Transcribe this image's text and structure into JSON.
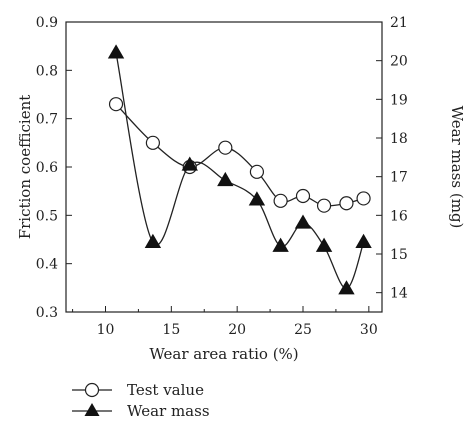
{
  "chart_data": {
    "type": "line",
    "title": "",
    "xlabel": "Wear area ratio (%)",
    "ylabel_left": "Friction coefficient",
    "ylabel_right": "Wear mass (mg)",
    "xlim": [
      7,
      31
    ],
    "ylim_left": [
      0.3,
      0.9
    ],
    "ylim_right": [
      13.5,
      21
    ],
    "x_ticks": [
      10,
      15,
      20,
      25,
      30
    ],
    "y_left_ticks": [
      0.3,
      0.4,
      0.5,
      0.6,
      0.7,
      0.8,
      0.9
    ],
    "y_right_ticks": [
      14,
      15,
      16,
      17,
      18,
      19,
      20,
      21
    ],
    "grid": false,
    "legend_position": "bottom-left (below plot)",
    "series": [
      {
        "name": "Test value",
        "axis": "left",
        "marker": "open-circle",
        "x": [
          10.8,
          13.6,
          16.4,
          19.1,
          21.5,
          23.3,
          25.0,
          26.6,
          28.3,
          29.6
        ],
        "y": [
          0.73,
          0.65,
          0.6,
          0.64,
          0.59,
          0.53,
          0.54,
          0.52,
          0.525,
          0.535
        ]
      },
      {
        "name": "Wear mass",
        "axis": "right",
        "marker": "filled-triangle",
        "x": [
          10.8,
          13.6,
          16.4,
          19.1,
          21.5,
          23.3,
          25.0,
          26.6,
          28.3,
          29.6
        ],
        "y": [
          20.2,
          15.3,
          17.3,
          16.9,
          16.4,
          15.2,
          15.8,
          15.2,
          14.1,
          15.3
        ]
      }
    ]
  }
}
